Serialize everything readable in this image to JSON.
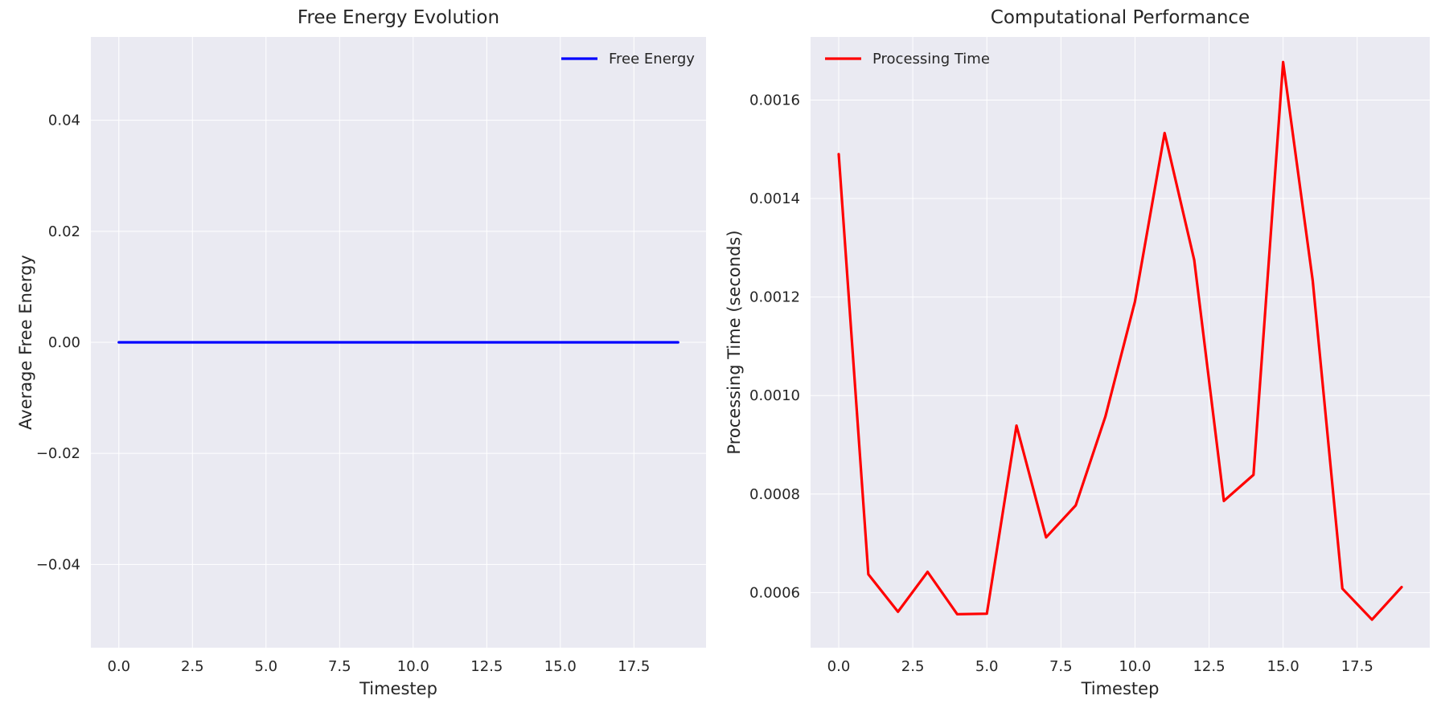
{
  "chart_data": [
    {
      "type": "line",
      "title": "Free Energy Evolution",
      "xlabel": "Timestep",
      "ylabel": "Average Free Energy",
      "xlim": [
        -0.95,
        19.95
      ],
      "ylim": [
        -0.055,
        0.055
      ],
      "xticks": [
        0.0,
        2.5,
        5.0,
        7.5,
        10.0,
        12.5,
        15.0,
        17.5
      ],
      "xtick_labels": [
        "0.0",
        "2.5",
        "5.0",
        "7.5",
        "10.0",
        "12.5",
        "15.0",
        "17.5"
      ],
      "yticks": [
        -0.04,
        -0.02,
        0.0,
        0.02,
        0.04
      ],
      "ytick_labels": [
        "−0.04",
        "−0.02",
        "0.00",
        "0.02",
        "0.04"
      ],
      "grid": true,
      "legend_position": "top-right",
      "series": [
        {
          "name": "Free Energy",
          "color": "#0000ff",
          "x": [
            0,
            1,
            2,
            3,
            4,
            5,
            6,
            7,
            8,
            9,
            10,
            11,
            12,
            13,
            14,
            15,
            16,
            17,
            18,
            19
          ],
          "y": [
            0,
            0,
            0,
            0,
            0,
            0,
            0,
            0,
            0,
            0,
            0,
            0,
            0,
            0,
            0,
            0,
            0,
            0,
            0,
            0
          ]
        }
      ]
    },
    {
      "type": "line",
      "title": "Computational Performance",
      "xlabel": "Timestep",
      "ylabel": "Processing Time (seconds)",
      "xlim": [
        -0.95,
        19.95
      ],
      "ylim": [
        0.000488,
        0.001728
      ],
      "xticks": [
        0.0,
        2.5,
        5.0,
        7.5,
        10.0,
        12.5,
        15.0,
        17.5
      ],
      "xtick_labels": [
        "0.0",
        "2.5",
        "5.0",
        "7.5",
        "10.0",
        "12.5",
        "15.0",
        "17.5"
      ],
      "yticks": [
        0.0006,
        0.0008,
        0.001,
        0.0012,
        0.0014,
        0.0016
      ],
      "ytick_labels": [
        "0.0006",
        "0.0008",
        "0.0010",
        "0.0012",
        "0.0014",
        "0.0016"
      ],
      "grid": true,
      "legend_position": "top-left",
      "series": [
        {
          "name": "Processing Time",
          "color": "#ff0000",
          "x": [
            0,
            1,
            2,
            3,
            4,
            5,
            6,
            7,
            8,
            9,
            10,
            11,
            12,
            13,
            14,
            15,
            16,
            17,
            18,
            19
          ],
          "y": [
            0.00149,
            0.000637,
            0.000561,
            0.000642,
            0.000556,
            0.000557,
            0.000939,
            0.000712,
            0.000777,
            0.000957,
            0.001191,
            0.001533,
            0.001275,
            0.000786,
            0.000839,
            0.001677,
            0.001233,
            0.000608,
            0.000545,
            0.000611
          ]
        }
      ]
    }
  ]
}
